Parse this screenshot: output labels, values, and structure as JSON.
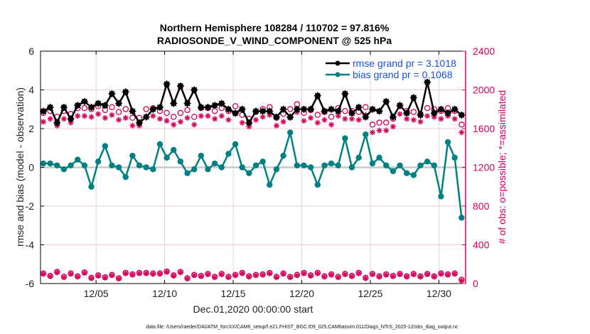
{
  "chart_data": {
    "type": "line",
    "title": [
      "Northern Hemisphere 108284 / 110702 = 97.816%",
      "RADIOSONDE_V_WIND_COMPONENT @ 525 hPa"
    ],
    "xlabel": "Dec.01,2020 00:00:00 start",
    "ylabel": "rmse and bias (model - observation)",
    "ylabel_right": "# of obs: o=possible; *=assimilated",
    "footnote": "data file: /Users/raeder/DAI/ATM_forcXX/CAM6_setup/f.e21.FHIST_BGC.f09_025.CAM6assim.011/Diags_NTrS_2020-12/obs_diag_output.nc",
    "x_unit": "days since Dec.01,2020 00:00:00",
    "xlim": [
      0,
      31
    ],
    "x_ticks": [
      {
        "value": 4,
        "label": "12/05"
      },
      {
        "value": 9,
        "label": "12/10"
      },
      {
        "value": 14,
        "label": "12/15"
      },
      {
        "value": 19,
        "label": "12/20"
      },
      {
        "value": 24,
        "label": "12/25"
      },
      {
        "value": 29,
        "label": "12/30"
      }
    ],
    "ylim": [
      -6,
      6
    ],
    "y_ticks": [
      -6,
      -4,
      -2,
      0,
      2,
      4,
      6
    ],
    "ylim_right": [
      0,
      2400
    ],
    "y_ticks_right": [
      0,
      400,
      800,
      1200,
      1600,
      2000,
      2400
    ],
    "grid": true,
    "legend_position": "top-right",
    "colors": {
      "rmse": "#000000",
      "bias": "#008080",
      "obs": "#d6005a",
      "zero_line": "#c8c8c8",
      "grid": "#f0c8d8",
      "legend_text": "#1a4fd8"
    },
    "x": [
      0.0,
      0.5,
      1.0,
      1.5,
      2.0,
      2.5,
      3.0,
      3.5,
      4.0,
      4.5,
      5.0,
      5.5,
      6.0,
      6.5,
      7.0,
      7.5,
      8.0,
      8.5,
      9.0,
      9.5,
      10.0,
      10.5,
      11.0,
      11.5,
      12.0,
      12.5,
      13.0,
      13.5,
      14.0,
      14.5,
      15.0,
      15.5,
      16.0,
      16.5,
      17.0,
      17.5,
      18.0,
      18.5,
      19.0,
      19.5,
      20.0,
      20.5,
      21.0,
      21.5,
      22.0,
      22.5,
      23.0,
      23.5,
      24.0,
      24.5,
      25.0,
      25.5,
      26.0,
      26.5,
      27.0,
      27.5,
      28.0,
      28.5,
      29.0,
      29.5,
      30.0,
      30.5
    ],
    "series": [
      {
        "name": "rmse grand pr = 3.1018",
        "axis": "left",
        "marker": "star-filled",
        "values": [
          2.9,
          3.1,
          2.3,
          3.1,
          2.5,
          3.2,
          3.4,
          3.1,
          3.3,
          3.2,
          3.8,
          3.3,
          3.9,
          2.9,
          2.3,
          2.6,
          3.0,
          3.1,
          4.3,
          3.3,
          4.2,
          3.3,
          4.0,
          3.1,
          3.1,
          3.2,
          3.3,
          3.0,
          2.8,
          3.0,
          2.3,
          2.9,
          2.9,
          2.9,
          2.6,
          3.0,
          2.6,
          3.0,
          3.0,
          3.0,
          3.7,
          2.9,
          3.0,
          2.9,
          3.8,
          2.8,
          3.1,
          2.6,
          3.0,
          2.9,
          3.4,
          2.6,
          3.2,
          2.8,
          3.6,
          2.7,
          4.4,
          2.8,
          3.0,
          2.8,
          3.0,
          2.7
        ]
      },
      {
        "name": "bias grand pr = 0.1068",
        "axis": "left",
        "marker": "circle-filled",
        "values": [
          0.2,
          0.2,
          0.1,
          -0.1,
          0.1,
          0.4,
          0.1,
          -1.0,
          0.3,
          1.1,
          0.1,
          0.0,
          -0.5,
          0.6,
          0.1,
          0.0,
          -0.1,
          1.2,
          0.5,
          0.9,
          0.3,
          -0.3,
          -0.1,
          0.6,
          -0.1,
          0.2,
          0.0,
          0.7,
          1.2,
          0.0,
          -0.3,
          0.1,
          0.3,
          -0.9,
          -0.1,
          0.6,
          1.8,
          0.1,
          0.1,
          0.0,
          -0.9,
          0.1,
          0.2,
          0.1,
          1.5,
          0.0,
          0.5,
          1.7,
          0.2,
          0.5,
          0.1,
          -0.2,
          0.1,
          -0.3,
          -0.4,
          0.1,
          0.3,
          0.1,
          -1.5,
          1.3,
          0.5,
          -2.6
        ]
      },
      {
        "name": "obs possible",
        "axis": "right",
        "marker": "circle-open",
        "values": [
          1740,
          1760,
          1700,
          1760,
          1730,
          1790,
          1790,
          1780,
          1810,
          1770,
          1800,
          1750,
          1780,
          1690,
          1690,
          1780,
          1790,
          1760,
          1740,
          1700,
          1740,
          1770,
          1700,
          1790,
          1790,
          1760,
          1790,
          1760,
          1810,
          1720,
          1680,
          1750,
          1780,
          1800,
          1690,
          1730,
          1780,
          1830,
          1740,
          1770,
          1720,
          1750,
          1700,
          1790,
          1760,
          1760,
          1750,
          1800,
          1620,
          1640,
          1640,
          1680,
          1810,
          1760,
          1750,
          1730,
          1790,
          1780,
          1760,
          1790,
          1760,
          1620
        ]
      },
      {
        "name": "obs assimilated",
        "axis": "right",
        "marker": "star",
        "values": [
          1700,
          1730,
          1660,
          1730,
          1690,
          1760,
          1760,
          1750,
          1780,
          1740,
          1770,
          1720,
          1740,
          1660,
          1660,
          1750,
          1760,
          1730,
          1710,
          1670,
          1700,
          1740,
          1670,
          1760,
          1760,
          1730,
          1760,
          1720,
          1780,
          1690,
          1650,
          1720,
          1750,
          1770,
          1660,
          1700,
          1740,
          1800,
          1710,
          1740,
          1690,
          1720,
          1670,
          1760,
          1730,
          1730,
          1720,
          1770,
          1590,
          1610,
          1610,
          1650,
          1780,
          1730,
          1720,
          1700,
          1760,
          1750,
          1730,
          1760,
          1730,
          1590
        ]
      },
      {
        "name": "obs possible (bottom)",
        "axis": "right",
        "marker": "circle-open",
        "values": [
          105,
          80,
          120,
          70,
          105,
          75,
          115,
          60,
          85,
          65,
          90,
          55,
          110,
          95,
          110,
          110,
          105,
          105,
          125,
          85,
          120,
          55,
          90,
          80,
          100,
          70,
          100,
          70,
          90,
          110,
          75,
          90,
          95,
          110,
          70,
          105,
          70,
          90,
          110,
          85,
          110,
          75,
          95,
          70,
          100,
          80,
          110,
          60,
          100,
          75,
          95,
          80,
          100,
          75,
          100,
          75,
          100,
          75,
          105,
          95,
          105,
          40
        ]
      },
      {
        "name": "obs assimilated (bottom)",
        "axis": "right",
        "marker": "star",
        "values": [
          100,
          75,
          115,
          65,
          100,
          70,
          110,
          55,
          80,
          60,
          85,
          50,
          105,
          90,
          105,
          105,
          100,
          100,
          120,
          80,
          115,
          50,
          85,
          75,
          95,
          65,
          95,
          65,
          85,
          105,
          70,
          85,
          90,
          105,
          65,
          100,
          65,
          85,
          105,
          80,
          105,
          70,
          90,
          65,
          95,
          75,
          105,
          55,
          95,
          70,
          90,
          75,
          95,
          70,
          95,
          70,
          95,
          70,
          100,
          90,
          100,
          30
        ]
      }
    ]
  }
}
